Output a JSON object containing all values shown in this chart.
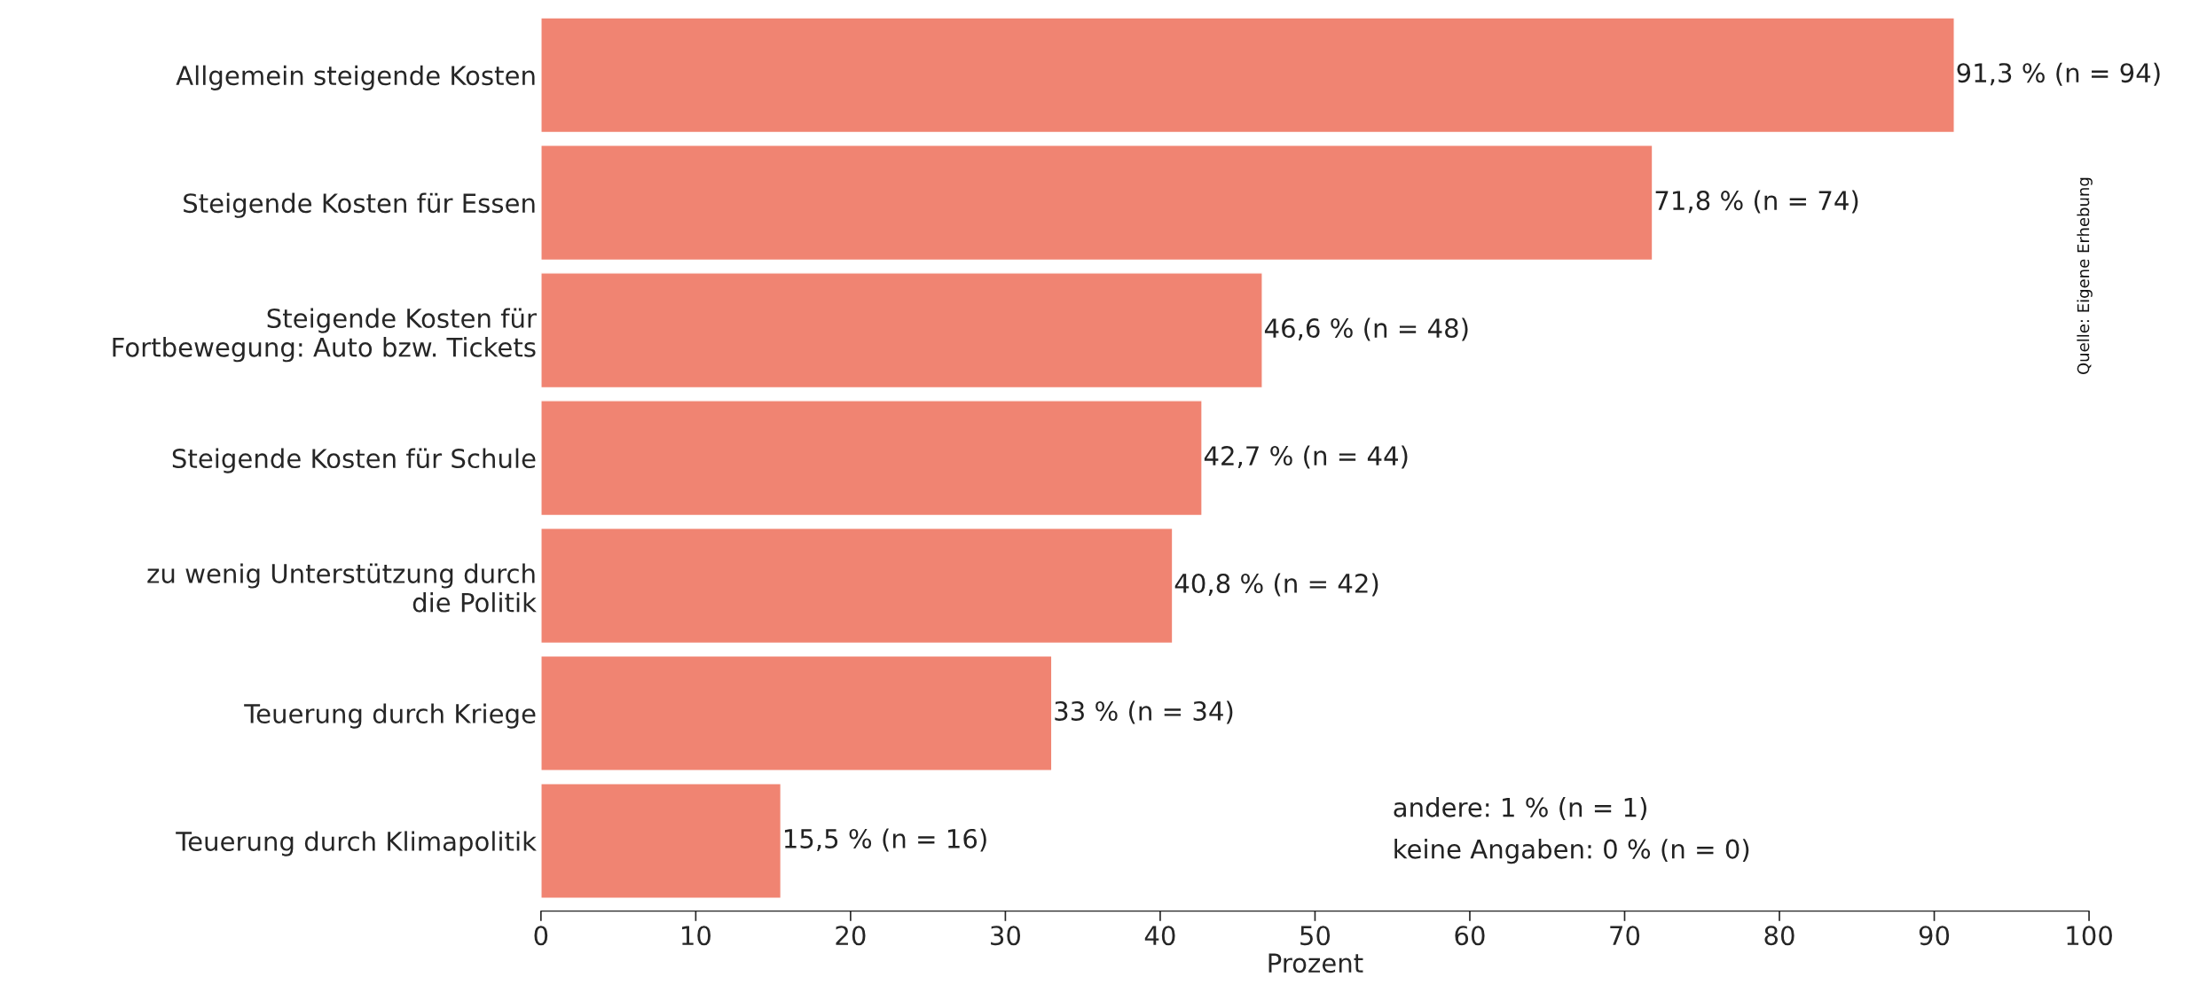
{
  "chart_data": {
    "type": "bar",
    "orientation": "horizontal",
    "xlabel": "Prozent",
    "categories": [
      "Allgemein steigende Kosten",
      "Steigende Kosten für Essen",
      "Steigende Kosten für\nFortbewegung: Auto bzw. Tickets",
      "Steigende Kosten für Schule",
      "zu wenig Unterstützung durch\ndie Politik",
      "Teuerung durch Kriege",
      "Teuerung durch Klimapolitik"
    ],
    "values": [
      91.3,
      71.8,
      46.6,
      42.7,
      40.8,
      33,
      15.5
    ],
    "value_labels": [
      "91,3 % (n = 94)",
      "71,8 % (n = 74)",
      "46,6 % (n = 48)",
      "42,7 % (n = 44)",
      "40,8 % (n = 42)",
      "33 % (n = 34)",
      "15,5 % (n = 16)"
    ],
    "color": "#f08472",
    "xlim": [
      0,
      100
    ],
    "xticks": [
      0,
      10,
      20,
      30,
      40,
      50,
      60,
      70,
      80,
      90,
      100
    ],
    "grid": false,
    "legend": false,
    "annotations": [
      "andere: 1 % (n = 1)",
      "keine Angaben: 0 % (n = 0)",
      "Quelle: Eigene Erhebung"
    ]
  }
}
